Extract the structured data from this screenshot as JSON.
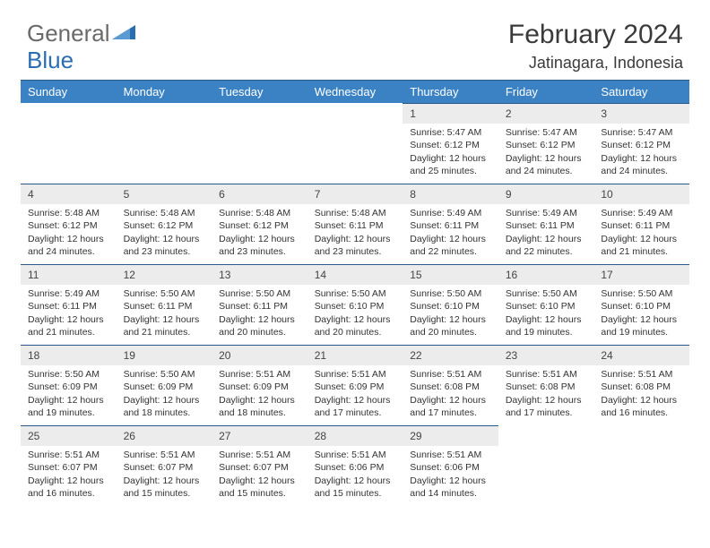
{
  "logo": {
    "part1": "General",
    "part2": "Blue"
  },
  "title": "February 2024",
  "location": "Jatinagara, Indonesia",
  "colors": {
    "header_bg": "#3b82c4",
    "header_border": "#2a5a8a",
    "daynum_bg": "#ececec",
    "text": "#333333",
    "logo_blue": "#2a6db0"
  },
  "weekdays": [
    "Sunday",
    "Monday",
    "Tuesday",
    "Wednesday",
    "Thursday",
    "Friday",
    "Saturday"
  ],
  "weeks": [
    [
      null,
      null,
      null,
      null,
      {
        "n": "1",
        "sr": "Sunrise: 5:47 AM",
        "ss": "Sunset: 6:12 PM",
        "d1": "Daylight: 12 hours",
        "d2": "and 25 minutes."
      },
      {
        "n": "2",
        "sr": "Sunrise: 5:47 AM",
        "ss": "Sunset: 6:12 PM",
        "d1": "Daylight: 12 hours",
        "d2": "and 24 minutes."
      },
      {
        "n": "3",
        "sr": "Sunrise: 5:47 AM",
        "ss": "Sunset: 6:12 PM",
        "d1": "Daylight: 12 hours",
        "d2": "and 24 minutes."
      }
    ],
    [
      {
        "n": "4",
        "sr": "Sunrise: 5:48 AM",
        "ss": "Sunset: 6:12 PM",
        "d1": "Daylight: 12 hours",
        "d2": "and 24 minutes."
      },
      {
        "n": "5",
        "sr": "Sunrise: 5:48 AM",
        "ss": "Sunset: 6:12 PM",
        "d1": "Daylight: 12 hours",
        "d2": "and 23 minutes."
      },
      {
        "n": "6",
        "sr": "Sunrise: 5:48 AM",
        "ss": "Sunset: 6:12 PM",
        "d1": "Daylight: 12 hours",
        "d2": "and 23 minutes."
      },
      {
        "n": "7",
        "sr": "Sunrise: 5:48 AM",
        "ss": "Sunset: 6:11 PM",
        "d1": "Daylight: 12 hours",
        "d2": "and 23 minutes."
      },
      {
        "n": "8",
        "sr": "Sunrise: 5:49 AM",
        "ss": "Sunset: 6:11 PM",
        "d1": "Daylight: 12 hours",
        "d2": "and 22 minutes."
      },
      {
        "n": "9",
        "sr": "Sunrise: 5:49 AM",
        "ss": "Sunset: 6:11 PM",
        "d1": "Daylight: 12 hours",
        "d2": "and 22 minutes."
      },
      {
        "n": "10",
        "sr": "Sunrise: 5:49 AM",
        "ss": "Sunset: 6:11 PM",
        "d1": "Daylight: 12 hours",
        "d2": "and 21 minutes."
      }
    ],
    [
      {
        "n": "11",
        "sr": "Sunrise: 5:49 AM",
        "ss": "Sunset: 6:11 PM",
        "d1": "Daylight: 12 hours",
        "d2": "and 21 minutes."
      },
      {
        "n": "12",
        "sr": "Sunrise: 5:50 AM",
        "ss": "Sunset: 6:11 PM",
        "d1": "Daylight: 12 hours",
        "d2": "and 21 minutes."
      },
      {
        "n": "13",
        "sr": "Sunrise: 5:50 AM",
        "ss": "Sunset: 6:11 PM",
        "d1": "Daylight: 12 hours",
        "d2": "and 20 minutes."
      },
      {
        "n": "14",
        "sr": "Sunrise: 5:50 AM",
        "ss": "Sunset: 6:10 PM",
        "d1": "Daylight: 12 hours",
        "d2": "and 20 minutes."
      },
      {
        "n": "15",
        "sr": "Sunrise: 5:50 AM",
        "ss": "Sunset: 6:10 PM",
        "d1": "Daylight: 12 hours",
        "d2": "and 20 minutes."
      },
      {
        "n": "16",
        "sr": "Sunrise: 5:50 AM",
        "ss": "Sunset: 6:10 PM",
        "d1": "Daylight: 12 hours",
        "d2": "and 19 minutes."
      },
      {
        "n": "17",
        "sr": "Sunrise: 5:50 AM",
        "ss": "Sunset: 6:10 PM",
        "d1": "Daylight: 12 hours",
        "d2": "and 19 minutes."
      }
    ],
    [
      {
        "n": "18",
        "sr": "Sunrise: 5:50 AM",
        "ss": "Sunset: 6:09 PM",
        "d1": "Daylight: 12 hours",
        "d2": "and 19 minutes."
      },
      {
        "n": "19",
        "sr": "Sunrise: 5:50 AM",
        "ss": "Sunset: 6:09 PM",
        "d1": "Daylight: 12 hours",
        "d2": "and 18 minutes."
      },
      {
        "n": "20",
        "sr": "Sunrise: 5:51 AM",
        "ss": "Sunset: 6:09 PM",
        "d1": "Daylight: 12 hours",
        "d2": "and 18 minutes."
      },
      {
        "n": "21",
        "sr": "Sunrise: 5:51 AM",
        "ss": "Sunset: 6:09 PM",
        "d1": "Daylight: 12 hours",
        "d2": "and 17 minutes."
      },
      {
        "n": "22",
        "sr": "Sunrise: 5:51 AM",
        "ss": "Sunset: 6:08 PM",
        "d1": "Daylight: 12 hours",
        "d2": "and 17 minutes."
      },
      {
        "n": "23",
        "sr": "Sunrise: 5:51 AM",
        "ss": "Sunset: 6:08 PM",
        "d1": "Daylight: 12 hours",
        "d2": "and 17 minutes."
      },
      {
        "n": "24",
        "sr": "Sunrise: 5:51 AM",
        "ss": "Sunset: 6:08 PM",
        "d1": "Daylight: 12 hours",
        "d2": "and 16 minutes."
      }
    ],
    [
      {
        "n": "25",
        "sr": "Sunrise: 5:51 AM",
        "ss": "Sunset: 6:07 PM",
        "d1": "Daylight: 12 hours",
        "d2": "and 16 minutes."
      },
      {
        "n": "26",
        "sr": "Sunrise: 5:51 AM",
        "ss": "Sunset: 6:07 PM",
        "d1": "Daylight: 12 hours",
        "d2": "and 15 minutes."
      },
      {
        "n": "27",
        "sr": "Sunrise: 5:51 AM",
        "ss": "Sunset: 6:07 PM",
        "d1": "Daylight: 12 hours",
        "d2": "and 15 minutes."
      },
      {
        "n": "28",
        "sr": "Sunrise: 5:51 AM",
        "ss": "Sunset: 6:06 PM",
        "d1": "Daylight: 12 hours",
        "d2": "and 15 minutes."
      },
      {
        "n": "29",
        "sr": "Sunrise: 5:51 AM",
        "ss": "Sunset: 6:06 PM",
        "d1": "Daylight: 12 hours",
        "d2": "and 14 minutes."
      },
      null,
      null
    ]
  ]
}
